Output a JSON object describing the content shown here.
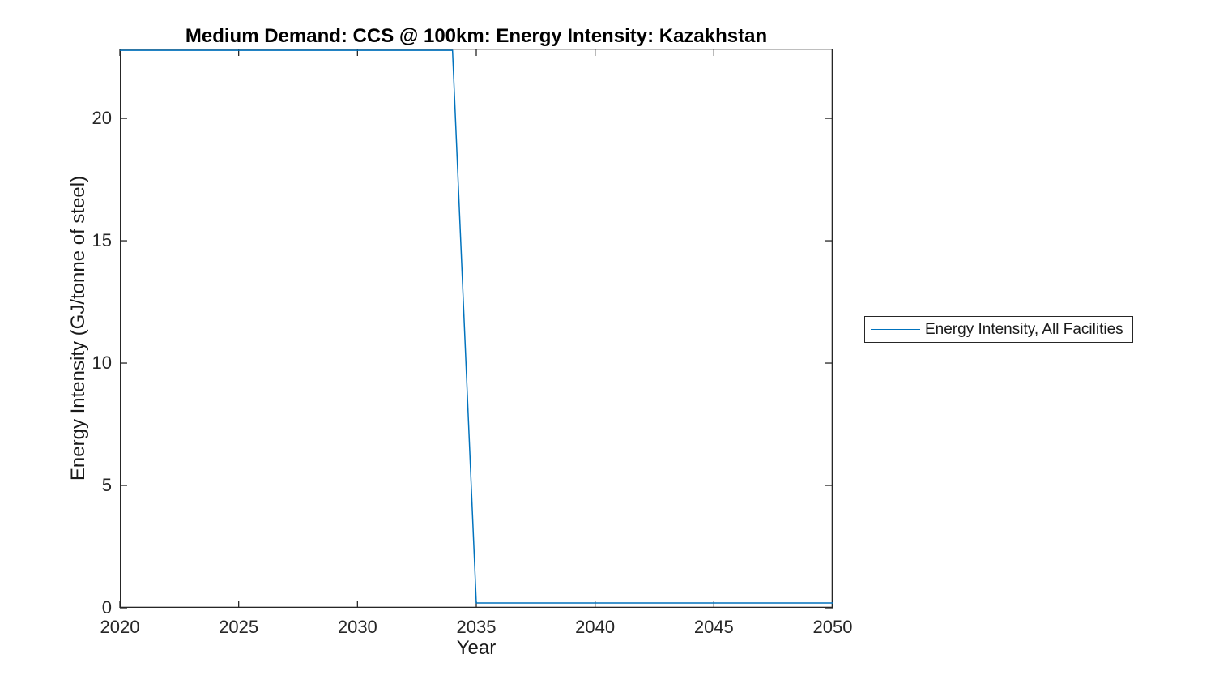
{
  "chart_data": {
    "type": "line",
    "title": "Medium Demand: CCS @ 100km: Energy Intensity: Kazakhstan",
    "xlabel": "Year",
    "ylabel": "Energy Intensity (GJ/tonne of steel)",
    "xlim": [
      2020,
      2050
    ],
    "ylim": [
      0,
      22.85
    ],
    "xticks": [
      2020,
      2025,
      2030,
      2035,
      2040,
      2045,
      2050
    ],
    "yticks": [
      0,
      5,
      10,
      15,
      20
    ],
    "grid": false,
    "legend": {
      "position": "outside-right",
      "entries": [
        {
          "label": "Energy Intensity, All Facilities",
          "color": "#0072BD"
        }
      ]
    },
    "series": [
      {
        "name": "Energy Intensity, All Facilities",
        "color": "#0072BD",
        "x": [
          2020,
          2034,
          2035,
          2050
        ],
        "y": [
          22.78,
          22.78,
          0.2,
          0.2
        ]
      }
    ],
    "colors": {
      "axis": "#262626",
      "title": "#000000",
      "label": "#1a1a1a",
      "background": "#ffffff"
    }
  }
}
